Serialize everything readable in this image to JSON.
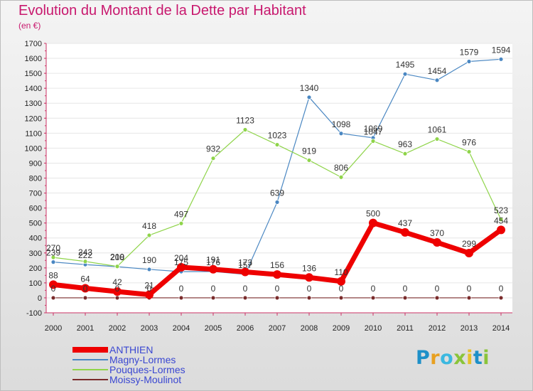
{
  "title": "Evolution du Montant de la Dette par Habitant",
  "subtitle": "(en €)",
  "brand": {
    "text": "Proxiti",
    "letter_colors": [
      "#1e90c8",
      "#e8a020",
      "#3bb8e0",
      "#8ac43a",
      "#e6c02a",
      "#1e90c8",
      "#8ac43a"
    ]
  },
  "chart_data": {
    "type": "line",
    "x": [
      "2000",
      "2001",
      "2002",
      "2003",
      "2004",
      "2005",
      "2006",
      "2007",
      "2008",
      "2009",
      "2010",
      "2011",
      "2012",
      "2013",
      "2014"
    ],
    "ylim": [
      -100,
      1700
    ],
    "yticks": [
      -100,
      0,
      100,
      200,
      300,
      400,
      500,
      600,
      700,
      800,
      900,
      1000,
      1100,
      1200,
      1300,
      1400,
      1500,
      1600,
      1700
    ],
    "grid": "y",
    "legend": "bottom-left",
    "series": [
      {
        "name": "Magny-Lormes",
        "color": "#4a87c2",
        "width": 1.2,
        "values": [
          239,
          222,
          208,
          190,
          175,
          176,
          157,
          639,
          1340,
          1098,
          1069,
          1495,
          1454,
          1579,
          1594
        ]
      },
      {
        "name": "Pouques-Lormes",
        "color": "#8fd44a",
        "width": 1.2,
        "values": [
          270,
          243,
          210,
          418,
          497,
          932,
          1123,
          1023,
          919,
          806,
          1047,
          963,
          1061,
          976,
          523
        ]
      },
      {
        "name": "Moissy-Moulinot",
        "color": "#7a2b2b",
        "width": 1.2,
        "values": [
          0,
          0,
          0,
          0,
          0,
          0,
          0,
          0,
          0,
          0,
          0,
          0,
          0,
          0,
          0
        ]
      },
      {
        "name": "ANTHIEN",
        "color": "#ee0000",
        "width": 7,
        "values": [
          88,
          64,
          42,
          21,
          204,
          191,
          173,
          156,
          136,
          110,
          500,
          437,
          370,
          299,
          454
        ]
      }
    ]
  },
  "legend_order": [
    "ANTHIEN",
    "Magny-Lormes",
    "Pouques-Lormes",
    "Moissy-Moulinot"
  ]
}
